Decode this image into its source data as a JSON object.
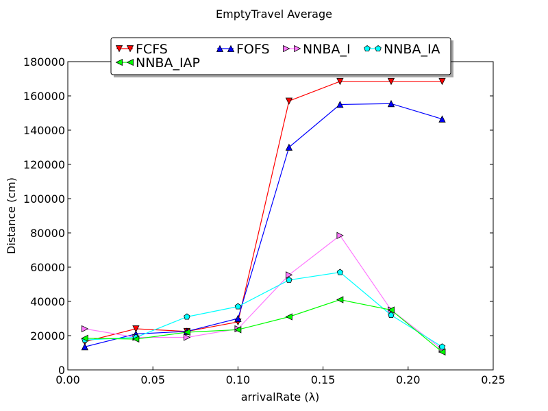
{
  "chart_data": {
    "type": "line",
    "title": "EmptyTravel Average",
    "xlabel": "arrivalRate (λ)",
    "ylabel": "Distance (cm)",
    "xlim": [
      0.0,
      0.25
    ],
    "ylim": [
      0,
      180000
    ],
    "x_ticks": [
      "0.00",
      "0.05",
      "0.10",
      "0.15",
      "0.20",
      "0.25"
    ],
    "y_ticks": [
      "0",
      "20000",
      "40000",
      "60000",
      "80000",
      "100000",
      "120000",
      "140000",
      "160000",
      "180000"
    ],
    "grid": false,
    "legend_position": "top-center",
    "x": [
      0.01,
      0.04,
      0.07,
      0.1,
      0.13,
      0.16,
      0.19,
      0.22
    ],
    "series": [
      {
        "name": "FCFS",
        "color": "#ff0000",
        "marker": "triangle-down",
        "values": [
          16500,
          24000,
          22500,
          28000,
          157000,
          168500,
          168500,
          168500
        ]
      },
      {
        "name": "FOFS",
        "color": "#0000ff",
        "marker": "triangle-up",
        "values": [
          13500,
          21000,
          22500,
          30000,
          130000,
          155000,
          155500,
          146500
        ]
      },
      {
        "name": "NNBA_I",
        "color": "#ff77ff",
        "marker": "triangle-right",
        "values": [
          24000,
          19000,
          19000,
          24000,
          55500,
          78500,
          35000,
          12000
        ]
      },
      {
        "name": "NNBA_IA",
        "color": "#00ffff",
        "marker": "pentagon",
        "values": [
          17500,
          19000,
          31000,
          37000,
          52500,
          57000,
          32000,
          13500
        ]
      },
      {
        "name": "NNBA_IAP",
        "color": "#00ff00",
        "marker": "triangle-left",
        "values": [
          18500,
          18000,
          22000,
          23500,
          31000,
          41000,
          35000,
          10500
        ]
      }
    ]
  }
}
